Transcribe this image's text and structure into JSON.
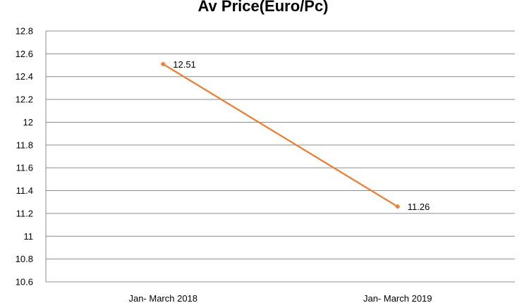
{
  "chart_data": {
    "type": "line",
    "title": "Av Price(Euro/Pc)",
    "categories": [
      "Jan- March 2018",
      "Jan- March 2019"
    ],
    "series": [
      {
        "values": [
          12.51,
          11.26
        ],
        "data_labels": [
          "12.51",
          "11.26"
        ]
      }
    ],
    "y_ticks": [
      "10.6",
      "10.8",
      "11",
      "11.2",
      "11.4",
      "11.6",
      "11.8",
      "12",
      "12.2",
      "12.4",
      "12.6",
      "12.8"
    ],
    "ylim": [
      10.6,
      12.8
    ],
    "xlabel": "",
    "ylabel": "",
    "grid": true,
    "legend": "none",
    "colors": {
      "series": "#ed7d31",
      "grid": "#8c8c8c"
    }
  }
}
